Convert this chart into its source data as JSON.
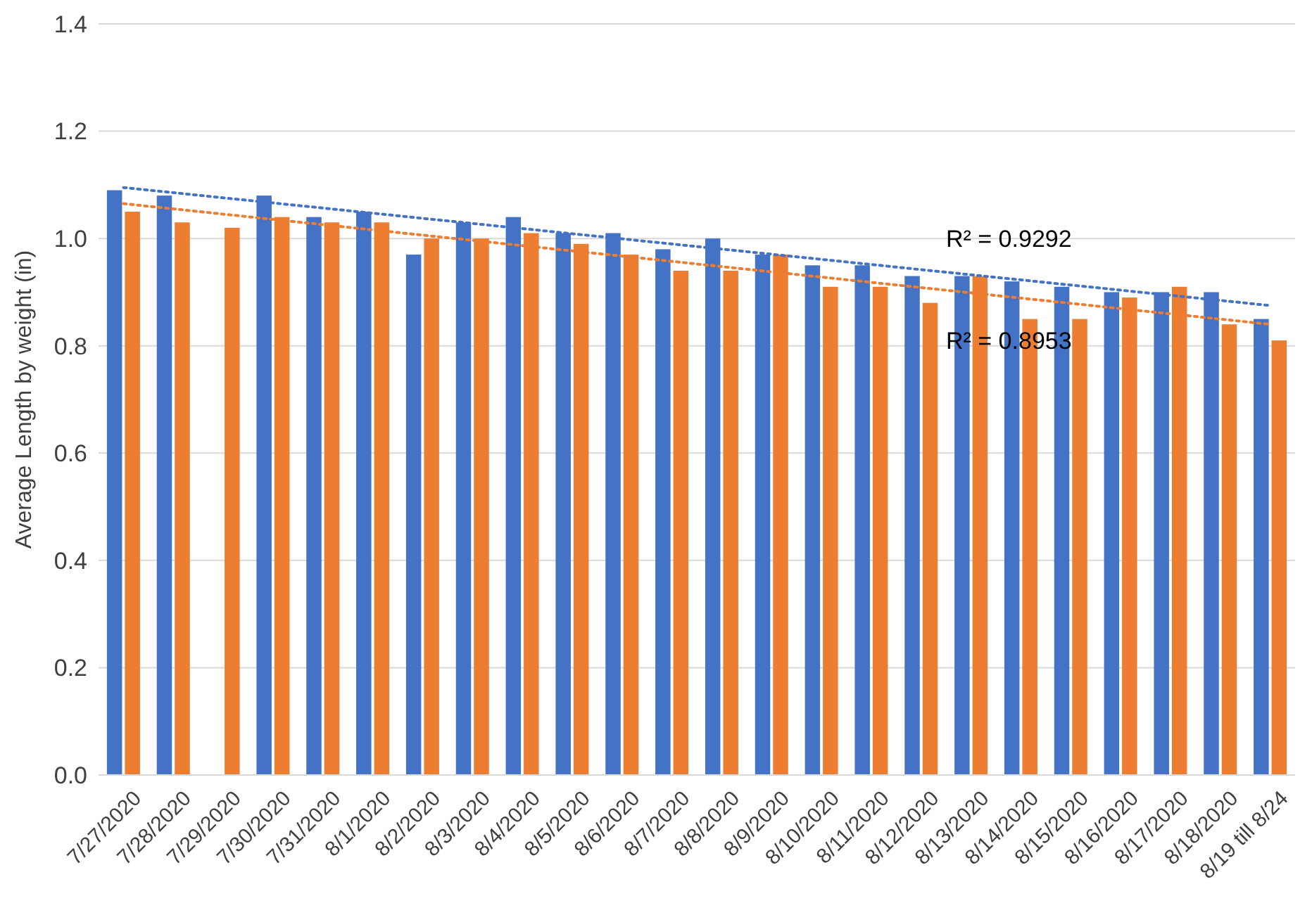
{
  "chart_data": {
    "type": "bar",
    "ylabel": "Average Length by weight (in)",
    "categories": [
      "7/27/2020",
      "7/28/2020",
      "7/29/2020",
      "7/30/2020",
      "7/31/2020",
      "8/1/2020",
      "8/2/2020",
      "8/3/2020",
      "8/4/2020",
      "8/5/2020",
      "8/6/2020",
      "8/7/2020",
      "8/8/2020",
      "8/9/2020",
      "8/10/2020",
      "8/11/2020",
      "8/12/2020",
      "8/13/2020",
      "8/14/2020",
      "8/15/2020",
      "8/16/2020",
      "8/17/2020",
      "8/18/2020",
      "8/19 till 8/24"
    ],
    "series": [
      {
        "color": "#4472c4",
        "values": [
          1.09,
          1.08,
          null,
          1.08,
          1.04,
          1.05,
          0.97,
          1.03,
          1.04,
          1.01,
          1.01,
          0.98,
          1.0,
          0.97,
          0.95,
          0.95,
          0.93,
          0.93,
          0.92,
          0.91,
          0.9,
          0.9,
          0.9,
          0.85
        ]
      },
      {
        "color": "#ed7d31",
        "values": [
          1.05,
          1.03,
          1.02,
          1.04,
          1.03,
          1.03,
          1.0,
          1.0,
          1.01,
          0.99,
          0.97,
          0.94,
          0.94,
          0.97,
          0.91,
          0.91,
          0.88,
          0.93,
          0.85,
          0.85,
          0.89,
          0.91,
          0.84,
          0.81
        ]
      },
      {
        "type": "line",
        "color": "#4472c4",
        "line_style": "dotted",
        "x": [
          "7/27/2020",
          "8/19 till 8/24"
        ],
        "values": [
          1.095,
          0.875
        ]
      },
      {
        "type": "line",
        "color": "#ed7d31",
        "line_style": "dotted",
        "x": [
          "7/27/2020",
          "8/19 till 8/24"
        ],
        "values": [
          1.065,
          0.84
        ]
      }
    ],
    "ylim": [
      0,
      1.4
    ],
    "yticks": [
      {
        "value": 0,
        "label": "0.0"
      },
      {
        "value": 0.2,
        "label": "0.2"
      },
      {
        "value": 0.4,
        "label": "0.4"
      },
      {
        "value": 0.6,
        "label": "0.6"
      },
      {
        "value": 0.8,
        "label": "0.8"
      },
      {
        "value": 1,
        "label": "1.0"
      },
      {
        "value": 1.2,
        "label": "1.2"
      },
      {
        "value": 1.4,
        "label": "1.4"
      }
    ],
    "grid": "y",
    "annotations": [
      "R² = 0.9292",
      "R² = 0.8953"
    ]
  }
}
